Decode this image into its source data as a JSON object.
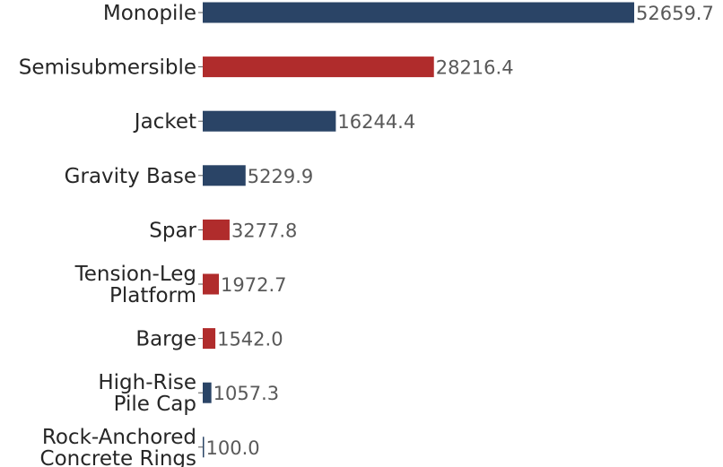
{
  "chart_data": {
    "type": "bar",
    "orientation": "horizontal",
    "title": "",
    "xlabel": "",
    "ylabel": "",
    "grid": false,
    "legend": "none",
    "categories": [
      "Monopile",
      "Semisubmersible",
      "Jacket",
      "Gravity Base",
      "Spar",
      "Tension-Leg Platform",
      "Barge",
      "High-Rise Pile Cap",
      "Rock-Anchored Concrete Rings"
    ],
    "category_lines": [
      [
        "Monopile"
      ],
      [
        "Semisubmersible"
      ],
      [
        "Jacket"
      ],
      [
        "Gravity Base"
      ],
      [
        "Spar"
      ],
      [
        "Tension-Leg",
        "Platform"
      ],
      [
        "Barge"
      ],
      [
        "High-Rise",
        "Pile Cap"
      ],
      [
        "Rock-Anchored",
        "Concrete Rings"
      ]
    ],
    "values": [
      52659.7,
      28216.4,
      16244.4,
      5229.9,
      3277.8,
      1972.7,
      1542.0,
      1057.3,
      100.0
    ],
    "value_labels": [
      "52659.7",
      "28216.4",
      "16244.4",
      "5229.9",
      "3277.8",
      "1972.7",
      "1542.0",
      "1057.3",
      "100.0"
    ],
    "bar_colors": [
      "#2a4466",
      "#b02c2c",
      "#2a4466",
      "#2a4466",
      "#b02c2c",
      "#b02c2c",
      "#b02c2c",
      "#2a4466",
      "#2a4466"
    ],
    "xlim": [
      0,
      52659.7
    ]
  }
}
